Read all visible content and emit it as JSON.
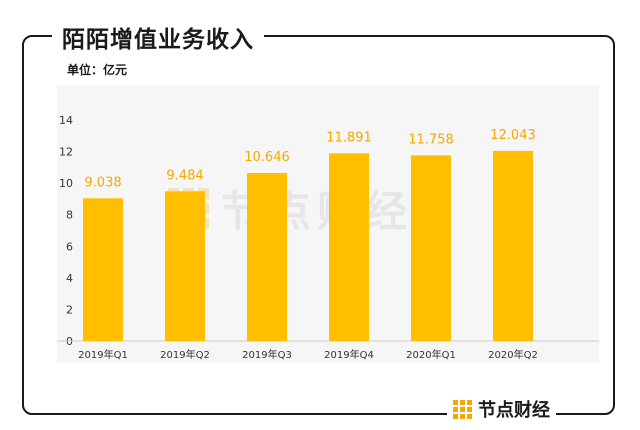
{
  "header": {
    "title": "陌陌增值业务收入",
    "unit_label": "单位：亿元"
  },
  "watermark": {
    "text": "节点财经"
  },
  "brand": {
    "name": "节点财经"
  },
  "colors": {
    "bar": "#ffbf00",
    "accent": "#f5a800",
    "grid_bg": "#f6f6f6",
    "frame": "#1a1a1a"
  },
  "chart_data": {
    "type": "bar",
    "categories": [
      "2019年Q1",
      "2019年Q2",
      "2019年Q3",
      "2019年Q4",
      "2020年Q1",
      "2020年Q2"
    ],
    "values": [
      9.038,
      9.484,
      10.646,
      11.891,
      11.758,
      12.043
    ],
    "value_labels": [
      "9.038",
      "9.484",
      "10.646",
      "11.891",
      "11.758",
      "12.043"
    ],
    "y_ticks": [
      0,
      2,
      4,
      6,
      8,
      10,
      12,
      14
    ],
    "ylim": [
      0,
      14
    ],
    "grid": false
  }
}
